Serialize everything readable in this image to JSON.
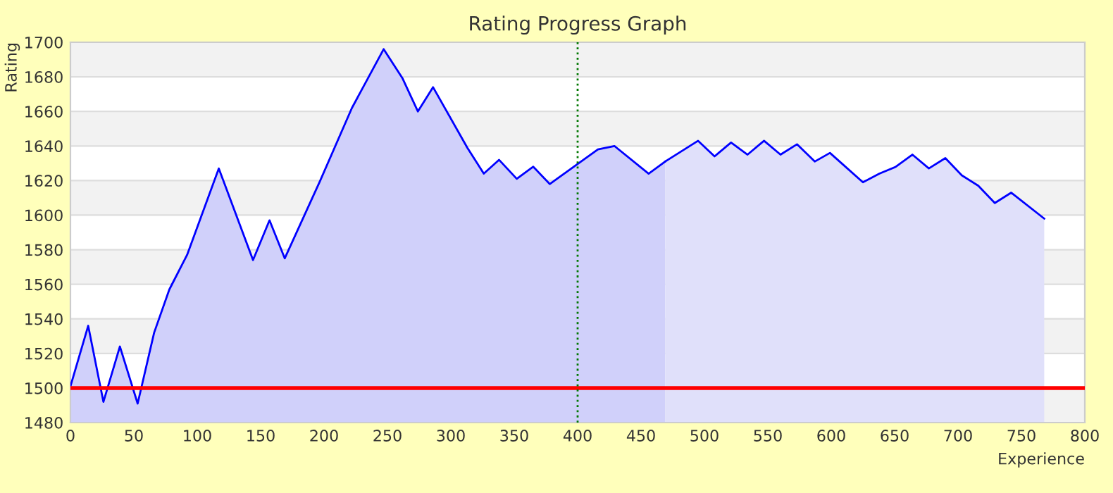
{
  "chart_data": {
    "type": "area",
    "title": "Rating Progress Graph",
    "xlabel": "Experience",
    "ylabel": "Rating",
    "series": [
      {
        "color": "#d0d0fa",
        "x": [
          0,
          14,
          26,
          39,
          53,
          66,
          78,
          92,
          117,
          144,
          157,
          169,
          197,
          222,
          247,
          262,
          274,
          286,
          313,
          326,
          338,
          352,
          365,
          378,
          416,
          429,
          456,
          469
        ],
        "values": [
          1501,
          1536,
          1492,
          1524,
          1491,
          1532,
          1557,
          1577,
          1627,
          1574,
          1597,
          1575,
          1620,
          1662,
          1696,
          1679,
          1660,
          1674,
          1639,
          1624,
          1632,
          1621,
          1628,
          1618,
          1638,
          1640,
          1624,
          1631
        ]
      },
      {
        "color": "#e0e0fa",
        "x": [
          469,
          495,
          508,
          521,
          534,
          547,
          560,
          573,
          587,
          599,
          625,
          638,
          651,
          664,
          677,
          690,
          703,
          716,
          729,
          742,
          768
        ],
        "values": [
          1631,
          1643,
          1634,
          1642,
          1635,
          1643,
          1635,
          1641,
          1631,
          1636,
          1619,
          1624,
          1628,
          1635,
          1627,
          1633,
          1623,
          1617,
          1607,
          1613,
          1598
        ]
      }
    ],
    "xlim": [
      0,
      800
    ],
    "xticks": [
      0,
      50,
      100,
      150,
      200,
      250,
      300,
      350,
      400,
      450,
      500,
      550,
      600,
      650,
      700,
      750,
      800
    ],
    "ylim": [
      1480,
      1700
    ],
    "yticks": [
      1480,
      1500,
      1520,
      1540,
      1560,
      1580,
      1600,
      1620,
      1640,
      1660,
      1680,
      1700
    ],
    "ref_lines": [
      {
        "axis": "y",
        "value": 1500,
        "color": "#ff0000",
        "line_style": "solid"
      },
      {
        "axis": "x",
        "value": 400,
        "color": "#007700",
        "line_style": "dotted"
      }
    ],
    "grid": "y",
    "legend": false
  }
}
